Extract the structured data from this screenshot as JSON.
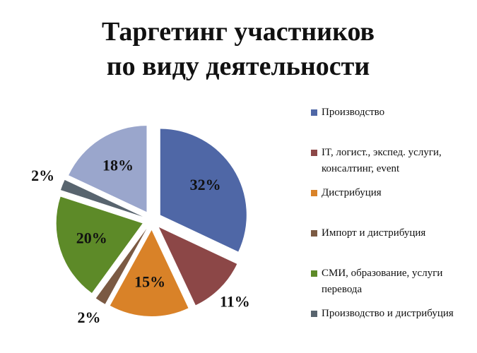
{
  "chart_data": {
    "type": "pie",
    "title": [
      "Таргетинг участников",
      "по виду деятельности"
    ],
    "categories": [
      "Производство",
      "IT, логист., экспед. услуги, консалтинг, event",
      "Дистрибуция",
      "Импорт и дистрибуция",
      "СМИ, образование, услуги перевода",
      "Производство и дистрибуция",
      null
    ],
    "values": [
      32,
      11,
      15,
      2,
      20,
      2,
      18
    ],
    "value_labels": [
      "32%",
      "11%",
      "15%",
      "2%",
      "20%",
      "2%",
      "18%"
    ],
    "colors": [
      "#4f67a6",
      "#8c4747",
      "#d98228",
      "#7b5a43",
      "#5d8a28",
      "#58646e",
      "#9aa6cc"
    ],
    "legend": "right"
  }
}
